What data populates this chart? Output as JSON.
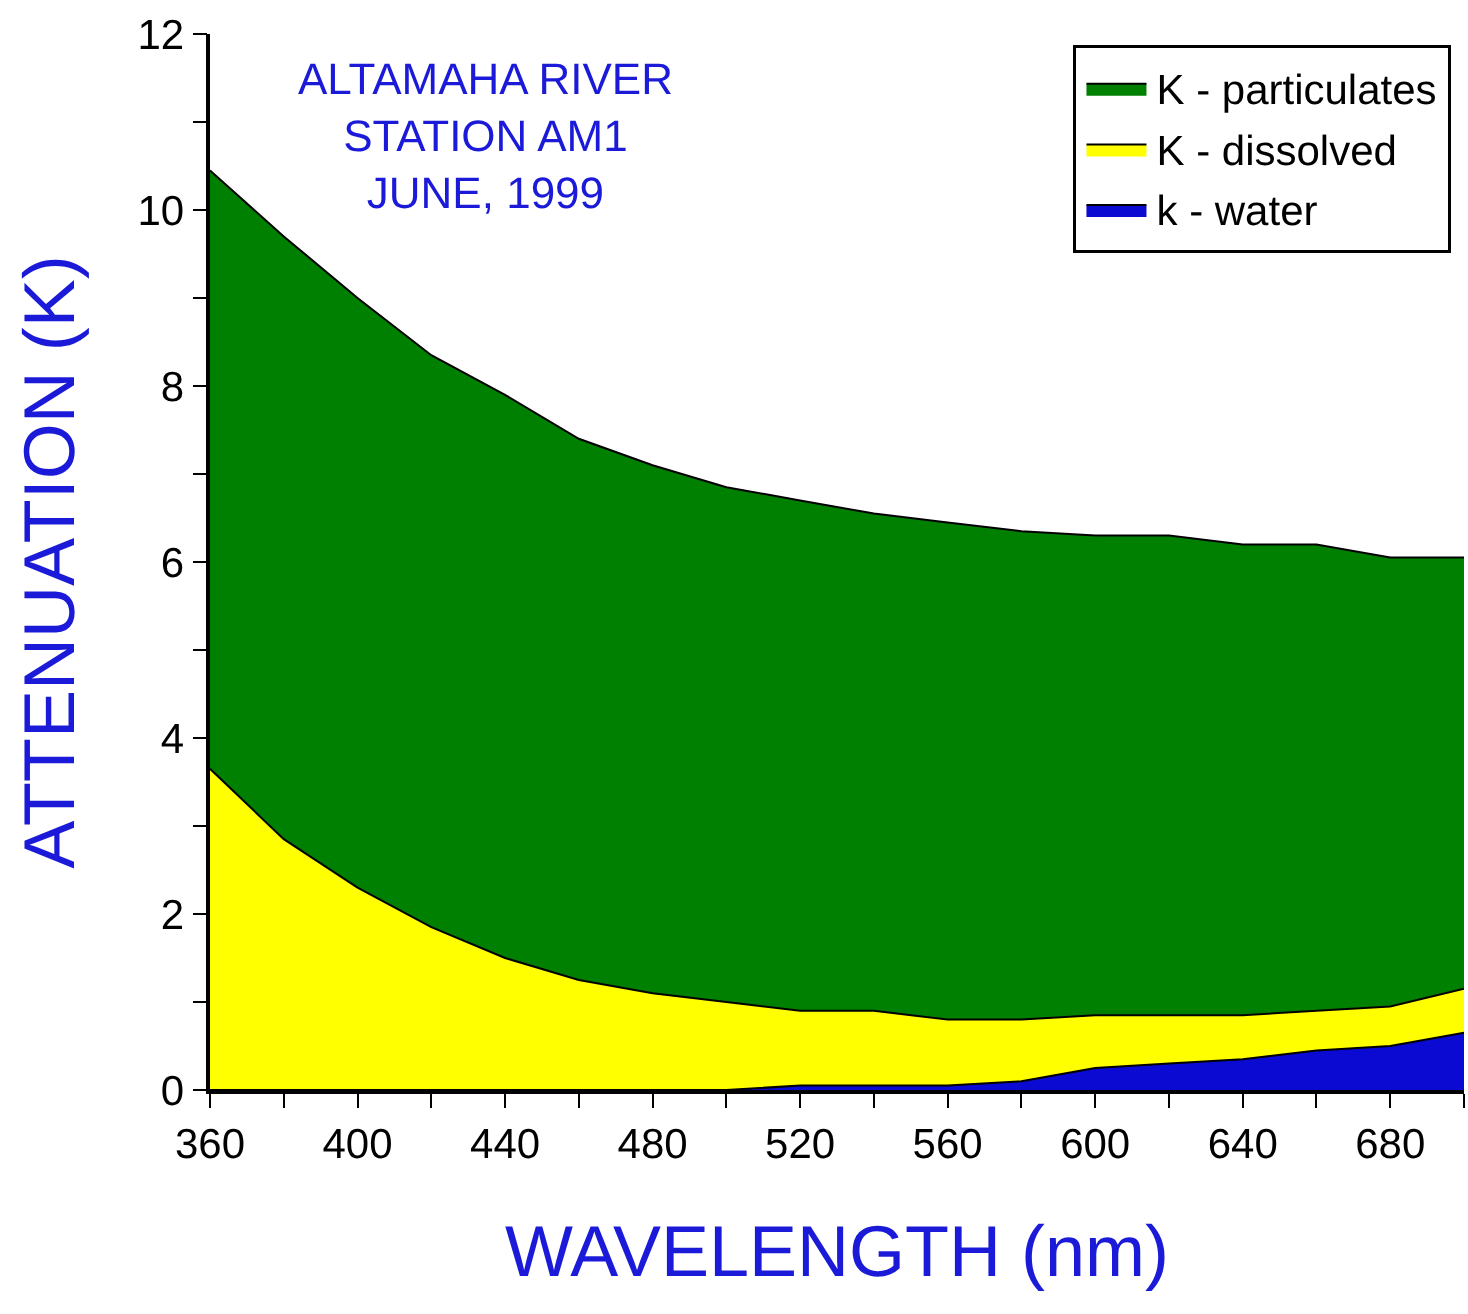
{
  "chart_data": {
    "type": "area",
    "stacked": true,
    "title": "ALTAMAHA RIVER\nSTATION AM1\nJUNE, 1999",
    "xlabel": "WAVELENGTH (nm)",
    "ylabel": "ATTENUATION (K)",
    "x": [
      360,
      380,
      400,
      420,
      440,
      460,
      480,
      500,
      520,
      540,
      560,
      580,
      600,
      620,
      640,
      660,
      680,
      700
    ],
    "series": [
      {
        "name": "k - water",
        "color": "#0a0ad2",
        "values": [
          0,
          0,
          0,
          0,
          0,
          0,
          0,
          0,
          0.05,
          0.05,
          0.05,
          0.1,
          0.25,
          0.3,
          0.35,
          0.45,
          0.5,
          0.65
        ]
      },
      {
        "name": "K - dissolved",
        "color": "#ffff00",
        "values": [
          3.65,
          2.85,
          2.3,
          1.85,
          1.5,
          1.25,
          1.1,
          1.0,
          0.85,
          0.85,
          0.75,
          0.7,
          0.6,
          0.55,
          0.5,
          0.45,
          0.45,
          0.5
        ]
      },
      {
        "name": "K - particulates",
        "color": "#008000",
        "values": [
          6.8,
          6.85,
          6.7,
          6.5,
          6.4,
          6.15,
          6.0,
          5.85,
          5.8,
          5.65,
          5.65,
          5.55,
          5.45,
          5.45,
          5.35,
          5.3,
          5.1,
          4.9
        ]
      }
    ],
    "xlim": [
      360,
      700
    ],
    "xticks": [
      360,
      {
        "value": 380,
        "label": null
      },
      400,
      {
        "value": 420,
        "label": null
      },
      440,
      {
        "value": 460,
        "label": null
      },
      480,
      {
        "value": 500,
        "label": null
      },
      520,
      {
        "value": 540,
        "label": null
      },
      560,
      {
        "value": 580,
        "label": null
      },
      600,
      {
        "value": 620,
        "label": null
      },
      640,
      {
        "value": 660,
        "label": null
      },
      680,
      {
        "value": 700,
        "label": null
      }
    ],
    "ylim": [
      0,
      12
    ],
    "yticks": [
      0,
      {
        "value": 1,
        "label": null
      },
      2,
      {
        "value": 3,
        "label": null
      },
      4,
      {
        "value": 5,
        "label": null
      },
      6,
      {
        "value": 7,
        "label": null
      },
      8,
      {
        "value": 9,
        "label": null
      },
      10,
      {
        "value": 11,
        "label": null
      },
      12
    ],
    "grid": false,
    "legend": "top right"
  }
}
